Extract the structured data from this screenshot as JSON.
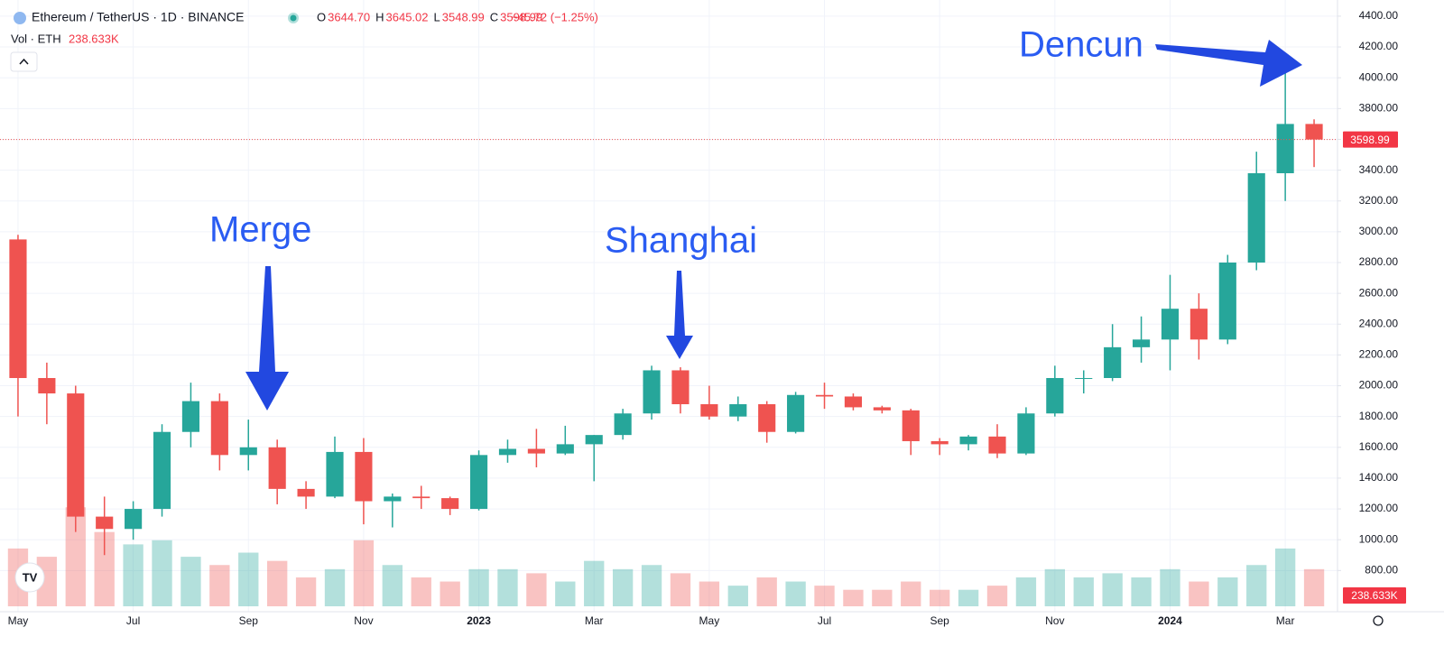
{
  "header": {
    "symbol": "Ethereum / TetherUS · 1D · BINANCE",
    "ohlc": [
      {
        "key": "O",
        "value": "3644.70"
      },
      {
        "key": "H",
        "value": "3645.02"
      },
      {
        "key": "L",
        "value": "3548.99"
      },
      {
        "key": "C",
        "value": "3598.99"
      }
    ],
    "change": "−45.72 (−1.25%)",
    "volume_label": "Vol · ETH",
    "volume": "238.633K"
  },
  "chart_data": {
    "type": "candlestick",
    "categories": [
      "May",
      null,
      null,
      null,
      "Jul",
      null,
      null,
      null,
      "Sep",
      null,
      null,
      null,
      "Nov",
      null,
      null,
      null,
      "2023",
      null,
      null,
      null,
      "Mar",
      null,
      null,
      null,
      "May",
      null,
      null,
      null,
      "Jul",
      null,
      null,
      null,
      "Sep",
      null,
      null,
      null,
      "Nov",
      null,
      null,
      null,
      "2024",
      null,
      null,
      null,
      "Mar",
      null
    ],
    "open": [
      2950,
      2050,
      1950,
      1150,
      1070,
      1200,
      1700,
      1900,
      1550,
      1600,
      1330,
      1280,
      1570,
      1250,
      1280,
      1270,
      1200,
      1550,
      1590,
      1560,
      1620,
      1680,
      1820,
      2100,
      1880,
      1800,
      1880,
      1700,
      1940,
      1930,
      1860,
      1840,
      1640,
      1620,
      1670,
      1560,
      1820,
      2050,
      2050,
      2250,
      2300,
      2500,
      2300,
      2800,
      3380,
      3700
    ],
    "high": [
      2980,
      2150,
      2000,
      1280,
      1250,
      1750,
      2020,
      1950,
      1780,
      1650,
      1380,
      1670,
      1660,
      1300,
      1350,
      1280,
      1580,
      1650,
      1720,
      1740,
      1680,
      1850,
      2130,
      2120,
      2000,
      1930,
      1900,
      1960,
      2020,
      1950,
      1870,
      1850,
      1660,
      1680,
      1750,
      1860,
      2130,
      2100,
      2400,
      2450,
      2720,
      2600,
      2850,
      3520,
      4090,
      3730
    ],
    "low": [
      1800,
      1750,
      1050,
      900,
      1000,
      1150,
      1600,
      1450,
      1450,
      1230,
      1200,
      1270,
      1100,
      1080,
      1200,
      1160,
      1190,
      1500,
      1470,
      1550,
      1380,
      1650,
      1780,
      1820,
      1780,
      1770,
      1630,
      1690,
      1850,
      1840,
      1820,
      1550,
      1550,
      1580,
      1530,
      1550,
      1800,
      1950,
      2030,
      2150,
      2100,
      2170,
      2270,
      2750,
      3200,
      3420
    ],
    "close": [
      2050,
      1950,
      1150,
      1070,
      1200,
      1700,
      1900,
      1550,
      1600,
      1330,
      1280,
      1570,
      1250,
      1280,
      1270,
      1200,
      1550,
      1590,
      1560,
      1620,
      1680,
      1820,
      2100,
      1880,
      1800,
      1880,
      1700,
      1940,
      1930,
      1860,
      1840,
      1640,
      1620,
      1670,
      1560,
      1820,
      2050,
      2050,
      2250,
      2300,
      2500,
      2300,
      2800,
      3380,
      3700,
      3598.99
    ],
    "volume": [
      700,
      600,
      1200,
      900,
      750,
      800,
      600,
      500,
      650,
      550,
      350,
      450,
      800,
      500,
      350,
      300,
      450,
      450,
      400,
      300,
      550,
      450,
      500,
      400,
      300,
      250,
      350,
      300,
      250,
      200,
      200,
      300,
      200,
      200,
      250,
      350,
      450,
      350,
      400,
      350,
      450,
      300,
      350,
      500,
      700,
      450
    ],
    "volume_ylim": [
      0,
      2000
    ],
    "up_color": "#26a69a",
    "down_color": "#ef5350",
    "ylim": [
      550,
      4505
    ],
    "yticks": [
      {
        "value": 800,
        "label": "800.00"
      },
      {
        "value": 1000,
        "label": "1000.00"
      },
      {
        "value": 1200,
        "label": "1200.00"
      },
      {
        "value": 1400,
        "label": "1400.00"
      },
      {
        "value": 1600,
        "label": "1600.00"
      },
      {
        "value": 1800,
        "label": "1800.00"
      },
      {
        "value": 2000,
        "label": "2000.00"
      },
      {
        "value": 2200,
        "label": "2200.00"
      },
      {
        "value": 2400,
        "label": "2400.00"
      },
      {
        "value": 2600,
        "label": "2600.00"
      },
      {
        "value": 2800,
        "label": "2800.00"
      },
      {
        "value": 3000,
        "label": "3000.00"
      },
      {
        "value": 3200,
        "label": "3200.00"
      },
      {
        "value": 3400,
        "label": "3400.00"
      },
      {
        "value": 3600,
        "label": "3600.00"
      },
      {
        "value": 3800,
        "label": "3800.00"
      },
      {
        "value": 4000,
        "label": "4000.00"
      },
      {
        "value": 4200,
        "label": "4200.00"
      },
      {
        "value": 4400,
        "label": "4400.00"
      }
    ],
    "grid": true,
    "annotations": [
      "Merge",
      "Shanghai",
      "Dencun"
    ]
  }
}
